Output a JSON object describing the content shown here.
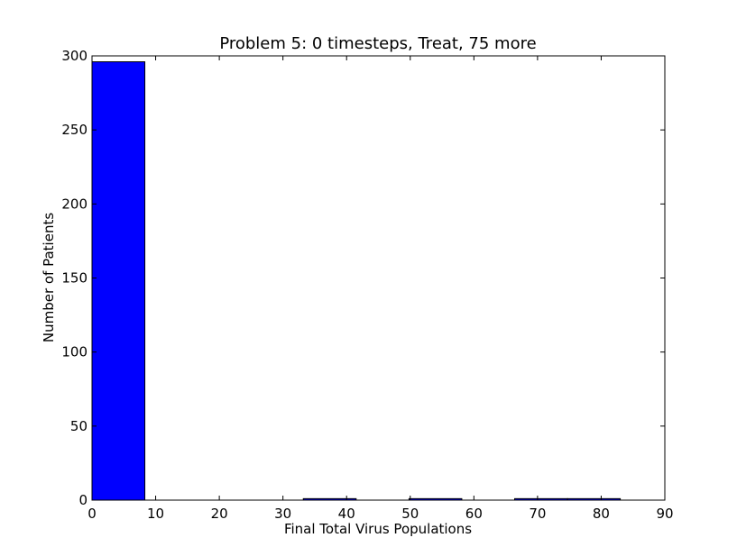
{
  "chart_data": {
    "type": "bar",
    "title": "Problem 5: 0 timesteps, Treat, 75 more",
    "xlabel": "Final Total Virus Populations",
    "ylabel": "Number of Patients",
    "xlim": [
      0,
      90
    ],
    "ylim": [
      0,
      300
    ],
    "xticks": [
      "0",
      "10",
      "20",
      "30",
      "40",
      "50",
      "60",
      "70",
      "80",
      "90"
    ],
    "yticks": [
      "0",
      "50",
      "100",
      "150",
      "200",
      "250",
      "300"
    ],
    "bins": [
      {
        "x0": 0.0,
        "x1": 8.3,
        "count": 296
      },
      {
        "x0": 8.3,
        "x1": 16.6,
        "count": 0
      },
      {
        "x0": 16.6,
        "x1": 24.9,
        "count": 0
      },
      {
        "x0": 24.9,
        "x1": 33.2,
        "count": 0
      },
      {
        "x0": 33.2,
        "x1": 41.5,
        "count": 1
      },
      {
        "x0": 41.5,
        "x1": 49.8,
        "count": 0
      },
      {
        "x0": 49.8,
        "x1": 58.1,
        "count": 1
      },
      {
        "x0": 58.1,
        "x1": 66.4,
        "count": 0
      },
      {
        "x0": 66.4,
        "x1": 74.7,
        "count": 1
      },
      {
        "x0": 74.7,
        "x1": 83.0,
        "count": 1
      }
    ],
    "bar_color": "#0000ff",
    "grid": false
  }
}
